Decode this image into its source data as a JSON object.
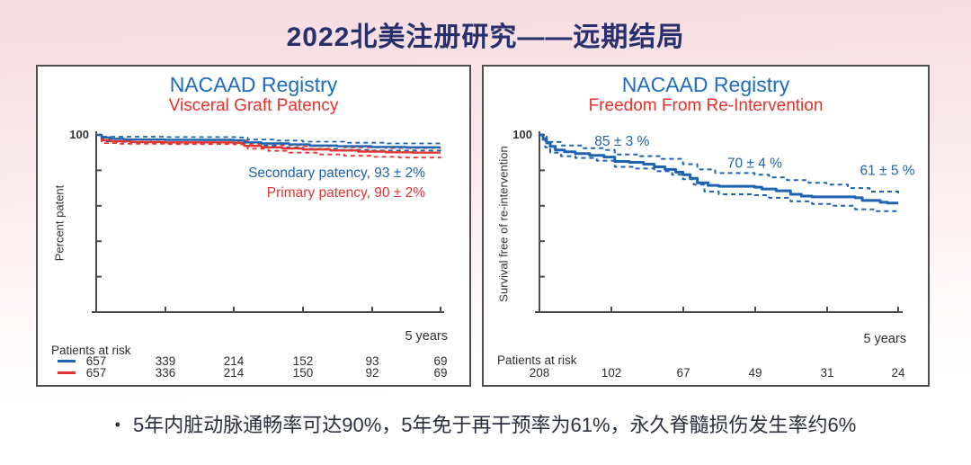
{
  "slide": {
    "title": "2022北美注册研究——远期结局",
    "bullet_marker": "•",
    "bullet": "5年内脏动脉通畅率可达90%，5年免于再干预率为61%，永久脊髓损伤发生率约6%"
  },
  "colors": {
    "blue": "#1d63b0",
    "red": "#e23430",
    "title_blue": "#1e6cba",
    "title_red": "#e7332c",
    "navy": "#27306d",
    "axis": "#4a4a4a",
    "text_dark": "#2b2f3e"
  },
  "chart_data": [
    {
      "type": "line",
      "title": "NACAAD Registry",
      "subtitle": "Visceral Graft Patency",
      "ylabel": "Percent patent",
      "xlabel_right": "5 years",
      "ylim": [
        0,
        100
      ],
      "xlim_years": [
        0,
        5
      ],
      "ytick_labels": [
        "100"
      ],
      "grid": false,
      "legend": [
        {
          "label": "Secondary patency, 93 ± 2%",
          "color": "blue"
        },
        {
          "label": "Primary patency, 90 ± 2%",
          "color": "red"
        }
      ],
      "series": [
        {
          "name": "secondary-patency-upper-ci",
          "style": "dashed",
          "color": "blue",
          "width": 1.8,
          "points": [
            [
              0,
              100
            ],
            [
              0.1,
              99
            ],
            [
              1.0,
              98.8
            ],
            [
              2.05,
              98.6
            ],
            [
              2.2,
              97.4
            ],
            [
              2.6,
              96.8
            ],
            [
              3.0,
              96.2
            ],
            [
              3.6,
              95.6
            ],
            [
              4.2,
              95.2
            ],
            [
              5,
              95
            ]
          ]
        },
        {
          "name": "primary-patency-upper-ci",
          "style": "dashed",
          "color": "red",
          "width": 1.8,
          "points": [
            [
              0,
              100
            ],
            [
              0.08,
              97.6
            ],
            [
              0.5,
              97.2
            ],
            [
              1.5,
              97
            ],
            [
              2.05,
              96.8
            ],
            [
              2.2,
              95
            ],
            [
              2.6,
              94.2
            ],
            [
              3.0,
              93.6
            ],
            [
              3.6,
              93
            ],
            [
              4.2,
              92.6
            ],
            [
              5,
              92.4
            ]
          ]
        },
        {
          "name": "secondary-patency-lower-ci",
          "style": "dashed",
          "color": "blue",
          "width": 1.8,
          "points": [
            [
              0,
              100
            ],
            [
              0.08,
              96.4
            ],
            [
              0.3,
              96
            ],
            [
              1.0,
              95.8
            ],
            [
              2.0,
              95.6
            ],
            [
              2.2,
              94
            ],
            [
              2.6,
              93
            ],
            [
              3.0,
              92.2
            ],
            [
              3.5,
              91.6
            ],
            [
              4.0,
              91.2
            ],
            [
              5,
              91
            ]
          ]
        },
        {
          "name": "primary-patency-lower-ci",
          "style": "dashed",
          "color": "red",
          "width": 1.8,
          "points": [
            [
              0,
              100
            ],
            [
              0.08,
              95.4
            ],
            [
              0.3,
              95
            ],
            [
              1.0,
              94.8
            ],
            [
              2.0,
              94.6
            ],
            [
              2.2,
              92.2
            ],
            [
              2.5,
              91
            ],
            [
              2.8,
              90
            ],
            [
              3.2,
              89
            ],
            [
              3.6,
              88.2
            ],
            [
              4.0,
              87.6
            ],
            [
              4.4,
              87.2
            ],
            [
              5,
              87
            ]
          ]
        },
        {
          "name": "primary-patency",
          "style": "solid",
          "color": "red",
          "width": 2.4,
          "points": [
            [
              0,
              100
            ],
            [
              0.08,
              97
            ],
            [
              0.2,
              96.4
            ],
            [
              0.5,
              96
            ],
            [
              1.0,
              95.8
            ],
            [
              2.0,
              95.6
            ],
            [
              2.15,
              93.8
            ],
            [
              2.4,
              93
            ],
            [
              2.7,
              92.4
            ],
            [
              3.0,
              91.8
            ],
            [
              3.4,
              91.2
            ],
            [
              3.8,
              90.6
            ],
            [
              4.2,
              90.2
            ],
            [
              4.6,
              90
            ],
            [
              5,
              90
            ]
          ]
        },
        {
          "name": "secondary-patency",
          "style": "solid",
          "color": "blue",
          "width": 2.4,
          "points": [
            [
              0,
              100
            ],
            [
              0.08,
              98.6
            ],
            [
              0.2,
              97.8
            ],
            [
              0.4,
              97.4
            ],
            [
              1.0,
              97.2
            ],
            [
              2.0,
              97
            ],
            [
              2.15,
              95.8
            ],
            [
              2.4,
              95.2
            ],
            [
              2.8,
              94.6
            ],
            [
              3.1,
              94
            ],
            [
              3.5,
              93.6
            ],
            [
              4.0,
              93.2
            ],
            [
              4.5,
              93
            ],
            [
              5,
              93
            ]
          ]
        }
      ],
      "annotations": [],
      "at_risk": {
        "label": "Patients at risk",
        "rows": [
          {
            "color": "blue",
            "values": [
              "657",
              "339",
              "214",
              "152",
              "93",
              "69"
            ]
          },
          {
            "color": "red",
            "values": [
              "657",
              "336",
              "214",
              "150",
              "92",
              "69"
            ]
          }
        ]
      }
    },
    {
      "type": "line",
      "title": "NACAAD Registry",
      "subtitle": "Freedom From Re-Intervention",
      "ylabel": "Survival free of re-intervention",
      "xlabel_right": "5 years",
      "ylim": [
        0,
        100
      ],
      "xlim_years": [
        0,
        5
      ],
      "ytick_labels": [
        "100"
      ],
      "grid": false,
      "legend": [],
      "series": [
        {
          "name": "reintervention-upper-ci",
          "style": "dashed",
          "color": "blue",
          "width": 2,
          "points": [
            [
              0,
              100
            ],
            [
              0.1,
              96
            ],
            [
              0.3,
              94
            ],
            [
              0.6,
              92.5
            ],
            [
              0.9,
              91.5
            ],
            [
              1.05,
              89
            ],
            [
              1.4,
              88
            ],
            [
              1.7,
              86.5
            ],
            [
              2.0,
              83.5
            ],
            [
              2.2,
              80.5
            ],
            [
              2.45,
              78.5
            ],
            [
              3.0,
              77.5
            ],
            [
              3.2,
              76
            ],
            [
              3.45,
              74.5
            ],
            [
              3.75,
              73
            ],
            [
              4.0,
              72
            ],
            [
              4.3,
              70
            ],
            [
              4.6,
              68
            ],
            [
              5,
              66.5
            ]
          ]
        },
        {
          "name": "reintervention-lower-ci",
          "style": "dashed",
          "color": "blue",
          "width": 2,
          "points": [
            [
              0,
              100
            ],
            [
              0.08,
              93
            ],
            [
              0.15,
              90
            ],
            [
              0.3,
              88
            ],
            [
              0.5,
              87
            ],
            [
              0.8,
              85.5
            ],
            [
              1.05,
              82
            ],
            [
              1.3,
              81
            ],
            [
              1.6,
              79.5
            ],
            [
              1.85,
              77.5
            ],
            [
              2.0,
              75
            ],
            [
              2.15,
              72
            ],
            [
              2.3,
              68
            ],
            [
              2.5,
              66.5
            ],
            [
              3.0,
              66
            ],
            [
              3.2,
              64.5
            ],
            [
              3.5,
              62.5
            ],
            [
              3.8,
              61
            ],
            [
              4.1,
              60
            ],
            [
              4.4,
              58
            ],
            [
              4.7,
              57
            ],
            [
              5,
              56.5
            ]
          ]
        },
        {
          "name": "freedom-from-reintervention",
          "style": "solid",
          "color": "blue",
          "width": 3,
          "points": [
            [
              0,
              100
            ],
            [
              0.05,
              97.5
            ],
            [
              0.1,
              95.5
            ],
            [
              0.15,
              93.5
            ],
            [
              0.22,
              91.5
            ],
            [
              0.35,
              90.5
            ],
            [
              0.5,
              89.5
            ],
            [
              0.7,
              88.5
            ],
            [
              0.9,
              87.5
            ],
            [
              1.05,
              85
            ],
            [
              1.25,
              84.5
            ],
            [
              1.45,
              83.5
            ],
            [
              1.6,
              82
            ],
            [
              1.75,
              80.5
            ],
            [
              1.9,
              79
            ],
            [
              2.0,
              77.5
            ],
            [
              2.1,
              75.5
            ],
            [
              2.2,
              73
            ],
            [
              2.35,
              71.5
            ],
            [
              2.5,
              71
            ],
            [
              3.0,
              70.5
            ],
            [
              3.1,
              69.5
            ],
            [
              3.3,
              68.5
            ],
            [
              3.5,
              66.5
            ],
            [
              3.65,
              65.5
            ],
            [
              3.8,
              65
            ],
            [
              4.4,
              64.5
            ],
            [
              4.5,
              63
            ],
            [
              4.75,
              62
            ],
            [
              4.85,
              61.5
            ],
            [
              5,
              61.5
            ]
          ]
        }
      ],
      "annotations": [
        {
          "text": "85 ± 3 %",
          "year": 1.15,
          "pct": 96.5
        },
        {
          "text": "70 ± 4 %",
          "year": 3.0,
          "pct": 84
        },
        {
          "text": "61 ± 5 %",
          "year": 4.85,
          "pct": 80
        }
      ],
      "at_risk": {
        "label": "Patients at risk",
        "rows": [
          {
            "color": null,
            "values": [
              "208",
              "102",
              "67",
              "49",
              "31",
              "24"
            ]
          }
        ]
      }
    }
  ]
}
